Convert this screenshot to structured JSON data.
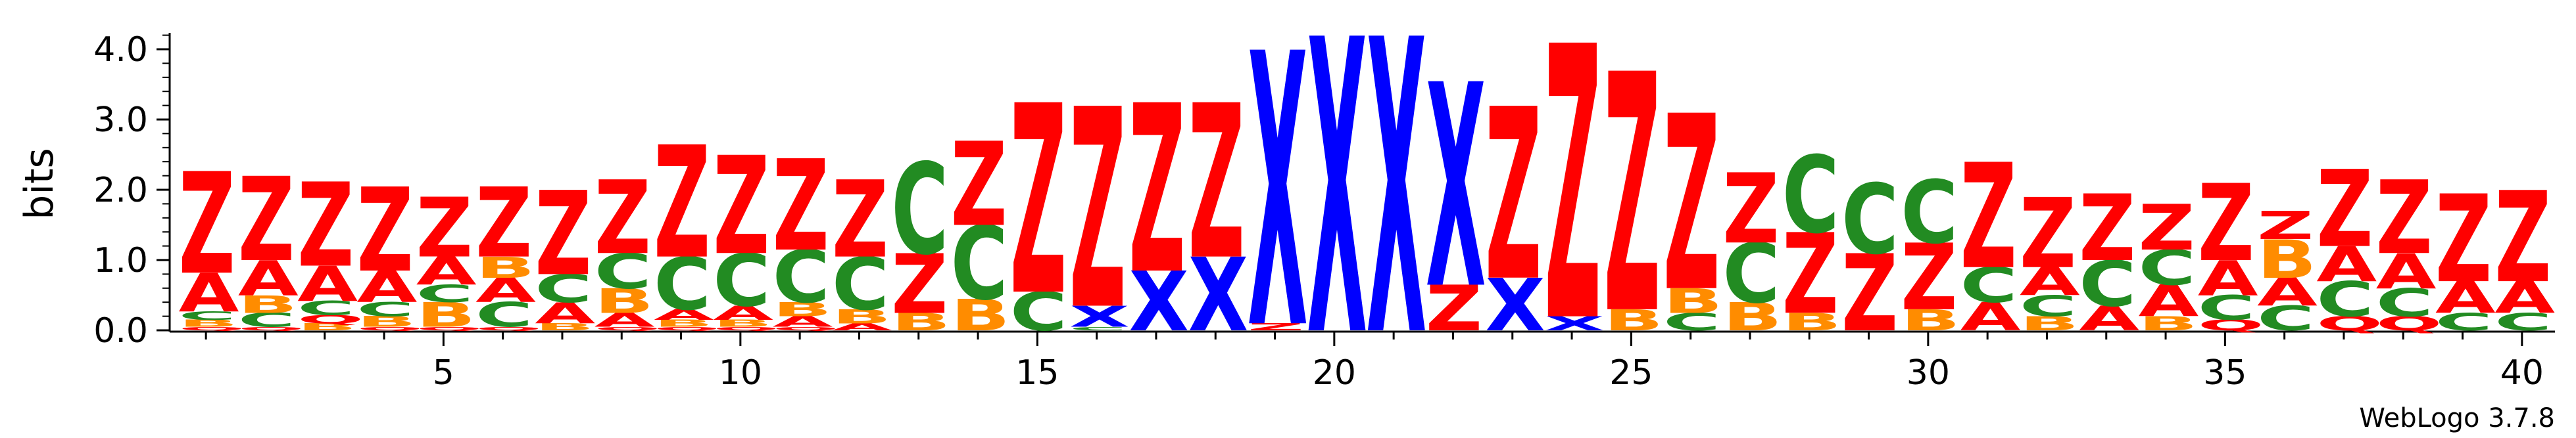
{
  "chart_data": {
    "type": "sequence-logo",
    "ylabel": "bits",
    "ylim": [
      0,
      4.3
    ],
    "yticks": [
      "0.0",
      "1.0",
      "2.0",
      "3.0",
      "4.0"
    ],
    "ytick_values": [
      0,
      1,
      2,
      3,
      4
    ],
    "xrange": [
      1,
      40
    ],
    "xticks": [
      "5",
      "10",
      "15",
      "20",
      "25",
      "30",
      "35",
      "40"
    ],
    "xtick_values": [
      5,
      10,
      15,
      20,
      25,
      30,
      35,
      40
    ],
    "colors": {
      "Z": "#ff0000",
      "A": "#ff0000",
      "X": "#0000ff",
      "C": "#228b22",
      "B": "#ff8c00",
      "Q": "#ff0000"
    },
    "positions": [
      {
        "pos": 1,
        "stack": [
          [
            "Q",
            0.05
          ],
          [
            "B",
            0.1
          ],
          [
            "C",
            0.12
          ],
          [
            "A",
            0.55
          ],
          [
            "Z",
            1.45
          ]
        ]
      },
      {
        "pos": 2,
        "stack": [
          [
            "Q",
            0.05
          ],
          [
            "C",
            0.2
          ],
          [
            "B",
            0.25
          ],
          [
            "A",
            0.5
          ],
          [
            "Z",
            1.2
          ]
        ]
      },
      {
        "pos": 3,
        "stack": [
          [
            "B",
            0.1
          ],
          [
            "Q",
            0.12
          ],
          [
            "C",
            0.2
          ],
          [
            "A",
            0.5
          ],
          [
            "Z",
            1.2
          ]
        ]
      },
      {
        "pos": 4,
        "stack": [
          [
            "Q",
            0.05
          ],
          [
            "B",
            0.15
          ],
          [
            "C",
            0.2
          ],
          [
            "A",
            0.45
          ],
          [
            "Z",
            1.2
          ]
        ]
      },
      {
        "pos": 5,
        "stack": [
          [
            "Q",
            0.05
          ],
          [
            "B",
            0.35
          ],
          [
            "C",
            0.25
          ],
          [
            "A",
            0.4
          ],
          [
            "Z",
            0.85
          ]
        ]
      },
      {
        "pos": 6,
        "stack": [
          [
            "Q",
            0.05
          ],
          [
            "C",
            0.35
          ],
          [
            "A",
            0.35
          ],
          [
            "B",
            0.3
          ],
          [
            "Z",
            1.0
          ]
        ]
      },
      {
        "pos": 7,
        "stack": [
          [
            "B",
            0.1
          ],
          [
            "A",
            0.3
          ],
          [
            "C",
            0.4
          ],
          [
            "Z",
            1.2
          ]
        ]
      },
      {
        "pos": 8,
        "stack": [
          [
            "Q",
            0.05
          ],
          [
            "A",
            0.2
          ],
          [
            "B",
            0.35
          ],
          [
            "C",
            0.5
          ],
          [
            "Z",
            1.05
          ]
        ]
      },
      {
        "pos": 9,
        "stack": [
          [
            "Q",
            0.05
          ],
          [
            "B",
            0.1
          ],
          [
            "A",
            0.15
          ],
          [
            "C",
            0.75
          ],
          [
            "Z",
            1.6
          ]
        ]
      },
      {
        "pos": 10,
        "stack": [
          [
            "Q",
            0.05
          ],
          [
            "B",
            0.1
          ],
          [
            "A",
            0.2
          ],
          [
            "C",
            0.75
          ],
          [
            "Z",
            1.4
          ]
        ]
      },
      {
        "pos": 11,
        "stack": [
          [
            "Q",
            0.05
          ],
          [
            "A",
            0.15
          ],
          [
            "B",
            0.2
          ],
          [
            "C",
            0.75
          ],
          [
            "Z",
            1.3
          ]
        ]
      },
      {
        "pos": 12,
        "stack": [
          [
            "A",
            0.1
          ],
          [
            "B",
            0.2
          ],
          [
            "C",
            0.75
          ],
          [
            "Z",
            1.1
          ]
        ]
      },
      {
        "pos": 13,
        "stack": [
          [
            "B",
            0.25
          ],
          [
            "Z",
            0.85
          ],
          [
            "C",
            1.3
          ]
        ]
      },
      {
        "pos": 14,
        "stack": [
          [
            "B",
            0.45
          ],
          [
            "C",
            1.05
          ],
          [
            "Z",
            1.2
          ]
        ]
      },
      {
        "pos": 15,
        "stack": [
          [
            "C",
            0.55
          ],
          [
            "Z",
            2.7
          ]
        ]
      },
      {
        "pos": 16,
        "stack": [
          [
            "C",
            0.05
          ],
          [
            "X",
            0.3
          ],
          [
            "Z",
            2.85
          ]
        ]
      },
      {
        "pos": 17,
        "stack": [
          [
            "X",
            0.85
          ],
          [
            "Z",
            2.4
          ]
        ]
      },
      {
        "pos": 18,
        "stack": [
          [
            "X",
            1.05
          ],
          [
            "Z",
            2.2
          ]
        ]
      },
      {
        "pos": 19,
        "stack": [
          [
            "Z",
            0.1
          ],
          [
            "X",
            3.9
          ]
        ]
      },
      {
        "pos": 20,
        "stack": [
          [
            "X",
            4.2
          ]
        ]
      },
      {
        "pos": 21,
        "stack": [
          [
            "X",
            4.2
          ]
        ]
      },
      {
        "pos": 22,
        "stack": [
          [
            "Z",
            0.65
          ],
          [
            "X",
            2.9
          ]
        ]
      },
      {
        "pos": 23,
        "stack": [
          [
            "X",
            0.75
          ],
          [
            "Z",
            2.45
          ]
        ]
      },
      {
        "pos": 24,
        "stack": [
          [
            "X",
            0.2
          ],
          [
            "Z",
            3.9
          ]
        ]
      },
      {
        "pos": 25,
        "stack": [
          [
            "B",
            0.3
          ],
          [
            "Z",
            3.4
          ]
        ]
      },
      {
        "pos": 26,
        "stack": [
          [
            "C",
            0.25
          ],
          [
            "B",
            0.35
          ],
          [
            "Z",
            2.5
          ]
        ]
      },
      {
        "pos": 27,
        "stack": [
          [
            "B",
            0.4
          ],
          [
            "C",
            0.85
          ],
          [
            "Z",
            1.0
          ]
        ]
      },
      {
        "pos": 28,
        "stack": [
          [
            "B",
            0.25
          ],
          [
            "Z",
            1.15
          ],
          [
            "C",
            1.1
          ]
        ]
      },
      {
        "pos": 29,
        "stack": [
          [
            "Z",
            1.1
          ],
          [
            "C",
            1.0
          ]
        ]
      },
      {
        "pos": 30,
        "stack": [
          [
            "B",
            0.3
          ],
          [
            "Z",
            0.95
          ],
          [
            "C",
            0.9
          ]
        ]
      },
      {
        "pos": 31,
        "stack": [
          [
            "A",
            0.4
          ],
          [
            "C",
            0.5
          ],
          [
            "Z",
            1.5
          ]
        ]
      },
      {
        "pos": 32,
        "stack": [
          [
            "B",
            0.2
          ],
          [
            "C",
            0.3
          ],
          [
            "A",
            0.4
          ],
          [
            "Z",
            1.0
          ]
        ]
      },
      {
        "pos": 33,
        "stack": [
          [
            "A",
            0.35
          ],
          [
            "C",
            0.65
          ],
          [
            "Z",
            0.95
          ]
        ]
      },
      {
        "pos": 34,
        "stack": [
          [
            "B",
            0.2
          ],
          [
            "A",
            0.45
          ],
          [
            "C",
            0.5
          ],
          [
            "Z",
            0.65
          ]
        ]
      },
      {
        "pos": 35,
        "stack": [
          [
            "Q",
            0.15
          ],
          [
            "C",
            0.35
          ],
          [
            "A",
            0.5
          ],
          [
            "Z",
            1.1
          ]
        ]
      },
      {
        "pos": 36,
        "stack": [
          [
            "C",
            0.35
          ],
          [
            "A",
            0.4
          ],
          [
            "B",
            0.55
          ],
          [
            "Z",
            0.4
          ]
        ]
      },
      {
        "pos": 37,
        "stack": [
          [
            "Q",
            0.2
          ],
          [
            "C",
            0.5
          ],
          [
            "A",
            0.5
          ],
          [
            "Z",
            1.1
          ]
        ]
      },
      {
        "pos": 38,
        "stack": [
          [
            "Q",
            0.2
          ],
          [
            "C",
            0.4
          ],
          [
            "A",
            0.5
          ],
          [
            "Z",
            1.05
          ]
        ]
      },
      {
        "pos": 39,
        "stack": [
          [
            "C",
            0.25
          ],
          [
            "A",
            0.45
          ],
          [
            "Z",
            1.25
          ]
        ]
      },
      {
        "pos": 40,
        "stack": [
          [
            "C",
            0.25
          ],
          [
            "A",
            0.45
          ],
          [
            "Z",
            1.3
          ]
        ]
      }
    ]
  },
  "credit": "WebLogo 3.7.8"
}
